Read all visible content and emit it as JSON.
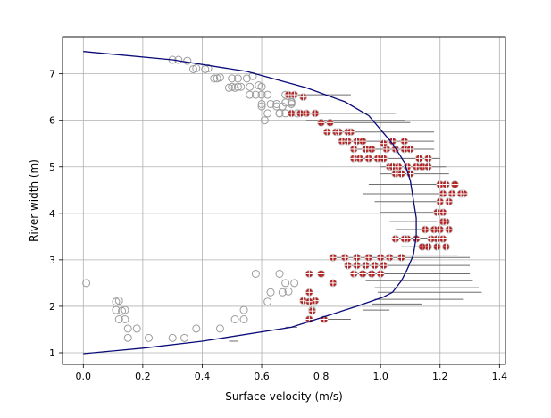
{
  "chart_data": {
    "type": "scatter",
    "xlabel": "Surface velocity (m/s)",
    "ylabel": "River width (m)",
    "xlim": [
      -0.07,
      1.42
    ],
    "ylim": [
      0.75,
      7.8
    ],
    "xticks": [
      0.0,
      0.2,
      0.4,
      0.6,
      0.8,
      1.0,
      1.2,
      1.4
    ],
    "yticks": [
      1,
      2,
      3,
      4,
      5,
      6,
      7
    ],
    "grid": true,
    "colors": {
      "profile": "#0a0a7a",
      "filtered": "#9c9c9c",
      "valid": "#b22222",
      "errorbar": "#6e6e6e"
    },
    "profile_curve": {
      "x": [
        0.0,
        0.3,
        0.55,
        0.75,
        0.88,
        0.96,
        1.0,
        1.04,
        1.08,
        1.1,
        1.11,
        1.12,
        1.12,
        1.11,
        1.09,
        1.07,
        1.04,
        1.01,
        0.92,
        0.7,
        0.4,
        0.2,
        0.0
      ],
      "y": [
        7.48,
        7.3,
        7.05,
        6.7,
        6.4,
        6.1,
        5.8,
        5.5,
        5.1,
        4.7,
        4.3,
        3.9,
        3.5,
        3.1,
        2.8,
        2.55,
        2.3,
        2.2,
        2.0,
        1.55,
        1.25,
        1.1,
        0.98
      ]
    },
    "filtered_points": {
      "x": [
        0.3,
        0.32,
        0.35,
        0.37,
        0.38,
        0.41,
        0.42,
        0.44,
        0.45,
        0.46,
        0.5,
        0.51,
        0.53,
        0.52,
        0.55,
        0.56,
        0.57,
        0.49,
        0.5,
        0.52,
        0.59,
        0.6,
        0.58,
        0.56,
        0.6,
        0.63,
        0.65,
        0.66,
        0.67,
        0.7,
        0.68,
        0.66,
        0.72,
        0.68,
        0.7,
        0.62,
        0.6,
        0.65,
        0.68,
        0.7,
        0.62,
        0.61,
        0.6,
        0.66,
        0.68,
        0.67,
        0.69,
        0.71,
        0.63,
        0.62,
        0.58,
        0.01,
        0.11,
        0.12,
        0.13,
        0.11,
        0.14,
        0.12,
        0.14,
        0.15,
        0.18,
        0.22,
        0.3,
        0.34,
        0.38,
        0.46,
        0.51,
        0.54,
        0.54,
        0.15
      ],
      "y": [
        7.3,
        7.3,
        7.28,
        7.1,
        7.12,
        7.1,
        7.12,
        6.9,
        6.9,
        6.92,
        6.9,
        6.7,
        6.72,
        6.9,
        6.9,
        6.72,
        6.95,
        6.7,
        6.72,
        6.72,
        6.75,
        6.72,
        6.55,
        6.55,
        6.55,
        6.35,
        6.35,
        6.15,
        6.3,
        6.35,
        6.15,
        6.15,
        6.15,
        6.55,
        6.4,
        6.55,
        6.3,
        6.3,
        6.38,
        6.38,
        6.15,
        6.0,
        6.35,
        2.7,
        2.5,
        2.3,
        2.32,
        2.5,
        2.3,
        2.1,
        2.7,
        2.5,
        2.1,
        2.12,
        1.9,
        1.92,
        1.92,
        1.72,
        1.72,
        1.52,
        1.52,
        1.32,
        1.32,
        1.32,
        1.52,
        1.52,
        1.72,
        1.72,
        1.92,
        1.32
      ]
    },
    "valid_points": {
      "x": [
        0.69,
        0.71,
        0.74,
        0.7,
        0.73,
        0.75,
        0.78,
        0.8,
        0.83,
        0.82,
        0.85,
        0.86,
        0.89,
        0.9,
        0.92,
        0.94,
        0.87,
        0.89,
        0.91,
        0.95,
        0.97,
        0.91,
        0.93,
        0.96,
        0.99,
        1.01,
        1.02,
        1.05,
        1.08,
        1.1,
        1.03,
        1.04,
        1.06,
        1.09,
        1.12,
        1.14,
        1.16,
        1.05,
        1.07,
        1.1,
        1.13,
        1.16,
        1.01,
        1.04,
        1.08,
        1.2,
        1.22,
        1.25,
        1.28,
        1.21,
        1.24,
        1.27,
        1.2,
        1.23,
        1.19,
        1.21,
        1.22,
        1.2,
        1.23,
        1.19,
        1.21,
        1.17,
        1.16,
        1.19,
        1.22,
        1.09,
        1.12,
        1.14,
        1.05,
        1.08,
        1.15,
        1.18,
        1.21,
        0.84,
        0.88,
        0.92,
        0.96,
        1.0,
        1.03,
        1.07,
        0.89,
        0.92,
        0.95,
        0.98,
        1.01,
        0.91,
        0.94,
        0.97,
        1.0,
        0.76,
        0.8,
        0.84,
        0.76,
        0.78,
        0.77,
        0.74,
        0.76,
        0.77,
        0.76,
        0.81
      ],
      "y": [
        6.55,
        6.55,
        6.5,
        6.15,
        6.15,
        6.15,
        6.15,
        5.95,
        5.95,
        5.75,
        5.75,
        5.75,
        5.75,
        5.75,
        5.55,
        5.55,
        5.55,
        5.55,
        5.38,
        5.38,
        5.38,
        5.18,
        5.18,
        5.18,
        5.18,
        5.18,
        5.38,
        5.38,
        5.38,
        5.38,
        5.0,
        5.0,
        5.0,
        5.0,
        5.0,
        5.0,
        5.0,
        4.85,
        4.85,
        4.85,
        5.18,
        5.18,
        5.5,
        5.55,
        5.55,
        4.62,
        4.62,
        4.62,
        4.42,
        4.42,
        4.42,
        4.42,
        4.25,
        4.25,
        4.02,
        4.02,
        3.82,
        3.65,
        3.65,
        3.45,
        3.45,
        3.45,
        3.28,
        3.28,
        3.28,
        3.45,
        3.45,
        3.28,
        3.45,
        3.45,
        3.65,
        3.65,
        3.82,
        3.05,
        3.05,
        3.05,
        3.05,
        3.05,
        3.05,
        3.05,
        2.88,
        2.88,
        2.88,
        2.88,
        2.88,
        2.7,
        2.7,
        2.7,
        2.7,
        2.7,
        2.7,
        2.5,
        2.3,
        2.12,
        1.92,
        2.12,
        2.1,
        1.9,
        1.72,
        1.72
      ]
    },
    "error_bars": [
      {
        "y": 6.55,
        "x_min": 0.69,
        "x_max": 0.9
      },
      {
        "y": 6.35,
        "x_min": 0.7,
        "x_max": 0.95
      },
      {
        "y": 6.15,
        "x_min": 0.72,
        "x_max": 1.05
      },
      {
        "y": 6.0,
        "x_min": 0.75,
        "x_max": 1.08
      },
      {
        "y": 5.95,
        "x_min": 0.8,
        "x_max": 1.1
      },
      {
        "y": 5.75,
        "x_min": 0.84,
        "x_max": 1.18
      },
      {
        "y": 5.55,
        "x_min": 0.87,
        "x_max": 1.18
      },
      {
        "y": 5.38,
        "x_min": 0.91,
        "x_max": 1.18
      },
      {
        "y": 5.18,
        "x_min": 0.92,
        "x_max": 1.2
      },
      {
        "y": 5.0,
        "x_min": 1.0,
        "x_max": 1.22
      },
      {
        "y": 4.85,
        "x_min": 1.0,
        "x_max": 1.23
      },
      {
        "y": 4.62,
        "x_min": 0.96,
        "x_max": 1.2
      },
      {
        "y": 4.42,
        "x_min": 0.94,
        "x_max": 1.2
      },
      {
        "y": 4.25,
        "x_min": 0.98,
        "x_max": 1.2
      },
      {
        "y": 4.02,
        "x_min": 1.0,
        "x_max": 1.19
      },
      {
        "y": 3.82,
        "x_min": 1.03,
        "x_max": 1.19
      },
      {
        "y": 3.65,
        "x_min": 1.05,
        "x_max": 1.2
      },
      {
        "y": 3.45,
        "x_min": 1.05,
        "x_max": 1.17
      },
      {
        "y": 3.28,
        "x_min": 1.07,
        "x_max": 1.16
      },
      {
        "y": 3.1,
        "x_min": 1.08,
        "x_max": 1.26
      },
      {
        "y": 3.05,
        "x_min": 0.84,
        "x_max": 1.3
      },
      {
        "y": 2.88,
        "x_min": 0.89,
        "x_max": 1.3
      },
      {
        "y": 2.7,
        "x_min": 0.91,
        "x_max": 1.3
      },
      {
        "y": 2.55,
        "x_min": 0.95,
        "x_max": 1.31
      },
      {
        "y": 2.4,
        "x_min": 0.98,
        "x_max": 1.33
      },
      {
        "y": 2.3,
        "x_min": 0.99,
        "x_max": 1.34
      },
      {
        "y": 2.15,
        "x_min": 0.98,
        "x_max": 1.28
      },
      {
        "y": 2.05,
        "x_min": 0.97,
        "x_max": 1.14
      },
      {
        "y": 1.92,
        "x_min": 0.94,
        "x_max": 1.03
      },
      {
        "y": 1.72,
        "x_min": 0.8,
        "x_max": 0.9
      },
      {
        "y": 1.55,
        "x_min": 0.68,
        "x_max": 0.72
      },
      {
        "y": 1.25,
        "x_min": 0.49,
        "x_max": 0.52
      }
    ]
  }
}
